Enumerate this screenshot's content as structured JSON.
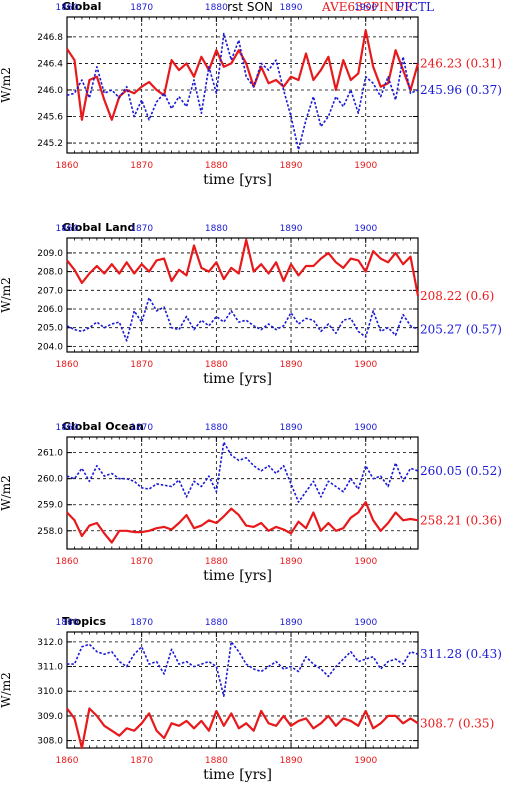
{
  "header": {
    "center_title": "rst SON",
    "right_title_red": "AVE63SPINUP",
    "right_title_blue": "PICTL"
  },
  "colors": {
    "red": "#e8191b",
    "blue": "#1a1ad6",
    "grid": "#000000"
  },
  "chart_data": [
    {
      "type": "line",
      "title": "Global",
      "xlabel": "time [yrs]",
      "ylabel": "W/m2",
      "xlim": [
        1860,
        1907
      ],
      "ylim": [
        245.05,
        247.1
      ],
      "yticks": [
        245.2,
        245.6,
        246.0,
        246.4,
        246.8
      ],
      "ytick_labels": [
        "245.2",
        "245.6",
        "246.0",
        "246.4",
        "246.8"
      ],
      "xticks": [
        1860,
        1870,
        1880,
        1890,
        1900
      ],
      "xtick_labels": [
        "1860",
        "1870",
        "1880",
        "1890",
        "1900"
      ],
      "grid": true,
      "series": [
        {
          "name": "AVE63SPINUP",
          "color": "red",
          "x_start": 1860,
          "values": [
            246.62,
            246.45,
            245.55,
            246.15,
            246.2,
            245.85,
            245.55,
            245.9,
            246.0,
            245.95,
            246.05,
            246.12,
            246.0,
            245.92,
            246.45,
            246.3,
            246.4,
            246.2,
            246.5,
            246.3,
            246.6,
            246.35,
            246.4,
            246.6,
            246.4,
            246.05,
            246.35,
            246.1,
            246.15,
            246.05,
            246.2,
            246.15,
            246.55,
            246.15,
            246.3,
            246.5,
            246.0,
            246.45,
            246.15,
            246.25,
            246.9,
            246.35,
            246.05,
            246.1,
            246.6,
            246.3,
            246.0,
            246.4
          ],
          "end_label": "246.23 (0.31)"
        },
        {
          "name": "PICTL",
          "color": "blue",
          "x_start": 1860,
          "values": [
            245.92,
            245.95,
            246.15,
            245.88,
            246.35,
            245.95,
            246.0,
            245.88,
            246.05,
            245.6,
            245.85,
            245.55,
            245.82,
            245.95,
            245.72,
            245.9,
            245.75,
            246.15,
            245.65,
            246.35,
            245.95,
            246.85,
            246.45,
            246.75,
            246.2,
            246.05,
            246.4,
            246.3,
            246.45,
            246.0,
            245.6,
            245.1,
            245.55,
            245.9,
            245.45,
            245.6,
            245.9,
            245.75,
            246.0,
            245.65,
            246.2,
            246.1,
            245.9,
            246.2,
            245.85,
            246.5,
            245.95,
            246.0
          ],
          "end_label": "245.96 (0.37)"
        }
      ]
    },
    {
      "type": "line",
      "title": "Global Land",
      "xlabel": "time [yrs]",
      "ylabel": "W/m2",
      "xlim": [
        1860,
        1907
      ],
      "ylim": [
        203.7,
        209.8
      ],
      "yticks": [
        204.0,
        205.0,
        206.0,
        207.0,
        208.0,
        209.0
      ],
      "ytick_labels": [
        "204.0",
        "205.0",
        "206.0",
        "207.0",
        "208.0",
        "209.0"
      ],
      "xticks": [
        1860,
        1870,
        1880,
        1890,
        1900
      ],
      "xtick_labels": [
        "1860",
        "1870",
        "1880",
        "1890",
        "1900"
      ],
      "grid": true,
      "series": [
        {
          "name": "AVE63SPINUP",
          "color": "red",
          "x_start": 1860,
          "values": [
            208.6,
            208.1,
            207.4,
            207.9,
            208.3,
            207.9,
            208.4,
            207.9,
            208.5,
            207.9,
            208.4,
            208.0,
            208.6,
            208.7,
            207.5,
            208.1,
            207.8,
            209.4,
            208.2,
            208.0,
            208.5,
            207.6,
            208.2,
            207.9,
            209.7,
            208.0,
            208.4,
            207.9,
            208.5,
            207.5,
            208.4,
            207.8,
            208.3,
            208.3,
            208.7,
            209.0,
            208.5,
            208.2,
            208.7,
            208.6,
            208.0,
            209.1,
            208.7,
            208.5,
            209.0,
            208.4,
            208.8,
            206.7
          ],
          "end_label": "208.22 (0.6)"
        },
        {
          "name": "PICTL",
          "color": "blue",
          "x_start": 1860,
          "values": [
            205.1,
            204.9,
            204.8,
            205.0,
            205.3,
            205.0,
            205.2,
            205.3,
            204.3,
            205.9,
            205.3,
            206.6,
            205.9,
            206.1,
            205.0,
            204.9,
            205.6,
            204.9,
            205.4,
            205.1,
            205.6,
            205.3,
            205.9,
            205.3,
            205.4,
            205.1,
            204.9,
            205.2,
            204.9,
            205.1,
            205.8,
            205.2,
            205.5,
            205.4,
            204.8,
            205.2,
            204.7,
            205.4,
            205.5,
            204.8,
            204.5,
            205.9,
            204.8,
            205.0,
            204.6,
            205.7,
            205.1,
            204.9
          ],
          "end_label": "205.27 (0.57)"
        }
      ]
    },
    {
      "type": "line",
      "title": "Global Ocean",
      "xlabel": "time [yrs]",
      "ylabel": "W/m2",
      "xlim": [
        1860,
        1907
      ],
      "ylim": [
        257.3,
        261.6
      ],
      "yticks": [
        258.0,
        259.0,
        260.0,
        261.0
      ],
      "ytick_labels": [
        "258.0",
        "259.0",
        "260.0",
        "261.0"
      ],
      "xticks": [
        1860,
        1870,
        1880,
        1890,
        1900
      ],
      "xtick_labels": [
        "1860",
        "1870",
        "1880",
        "1890",
        "1900"
      ],
      "grid": true,
      "series": [
        {
          "name": "AVE63SPINUP",
          "color": "red",
          "x_start": 1860,
          "values": [
            258.7,
            258.4,
            257.8,
            258.2,
            258.3,
            257.9,
            257.55,
            258.0,
            258.0,
            257.95,
            257.95,
            258.0,
            258.1,
            258.15,
            258.05,
            258.3,
            258.6,
            258.1,
            258.2,
            258.4,
            258.3,
            258.55,
            258.85,
            258.6,
            258.2,
            258.15,
            258.3,
            258.0,
            258.15,
            258.05,
            257.9,
            258.35,
            258.1,
            258.7,
            258.0,
            258.3,
            258.0,
            258.1,
            258.5,
            258.7,
            259.1,
            258.4,
            258.0,
            258.3,
            258.7,
            258.4,
            258.45,
            258.4
          ],
          "end_label": "258.21 (0.36)"
        },
        {
          "name": "PICTL",
          "color": "blue",
          "x_start": 1860,
          "values": [
            260.1,
            260.0,
            260.4,
            259.9,
            260.5,
            260.1,
            260.2,
            260.0,
            260.0,
            259.9,
            259.65,
            259.6,
            259.8,
            259.75,
            259.7,
            259.95,
            259.3,
            259.9,
            259.7,
            260.1,
            259.5,
            261.4,
            260.9,
            260.7,
            260.8,
            260.5,
            260.3,
            260.5,
            260.2,
            260.5,
            259.8,
            259.1,
            259.5,
            259.9,
            259.3,
            259.9,
            259.7,
            259.5,
            260.0,
            259.6,
            260.5,
            260.0,
            260.1,
            259.7,
            260.6,
            259.9,
            260.4,
            260.3
          ],
          "end_label": "260.05 (0.52)"
        }
      ]
    },
    {
      "type": "line",
      "title": "Tropics",
      "xlabel": "time [yrs]",
      "ylabel": "W/m2",
      "xlim": [
        1860,
        1907
      ],
      "ylim": [
        307.7,
        312.4
      ],
      "yticks": [
        308.0,
        309.0,
        310.0,
        311.0,
        312.0
      ],
      "ytick_labels": [
        "308.0",
        "309.0",
        "310.0",
        "311.0",
        "312.0"
      ],
      "xticks": [
        1860,
        1870,
        1880,
        1890,
        1900
      ],
      "xtick_labels": [
        "1860",
        "1870",
        "1880",
        "1890",
        "1900"
      ],
      "grid": true,
      "series": [
        {
          "name": "AVE63SPINUP",
          "color": "red",
          "x_start": 1860,
          "values": [
            309.3,
            308.9,
            307.7,
            309.3,
            309.0,
            308.6,
            308.4,
            308.2,
            308.5,
            308.4,
            308.7,
            309.1,
            308.4,
            308.1,
            308.7,
            308.6,
            308.8,
            308.5,
            308.8,
            308.4,
            309.2,
            308.6,
            309.1,
            308.5,
            308.7,
            308.4,
            309.2,
            308.7,
            308.6,
            309.0,
            308.6,
            308.8,
            308.9,
            308.5,
            308.7,
            309.0,
            308.6,
            308.9,
            308.8,
            308.6,
            309.2,
            308.5,
            308.7,
            309.0,
            309.0,
            308.7,
            308.9,
            308.7
          ],
          "end_label": "308.7 (0.35)"
        },
        {
          "name": "PICTL",
          "color": "blue",
          "x_start": 1860,
          "values": [
            311.1,
            311.1,
            311.8,
            311.9,
            311.6,
            311.5,
            311.6,
            311.2,
            311.0,
            311.5,
            311.8,
            311.1,
            311.2,
            310.7,
            311.7,
            311.1,
            311.2,
            311.0,
            311.1,
            311.2,
            311.0,
            309.8,
            312.0,
            311.6,
            311.1,
            310.9,
            310.8,
            311.0,
            311.2,
            310.9,
            311.0,
            310.8,
            311.4,
            311.1,
            310.9,
            310.6,
            311.0,
            311.3,
            311.6,
            311.2,
            311.3,
            311.4,
            310.9,
            311.2,
            311.3,
            311.1,
            311.6,
            311.5
          ],
          "end_label": "311.28 (0.43)"
        }
      ]
    }
  ]
}
